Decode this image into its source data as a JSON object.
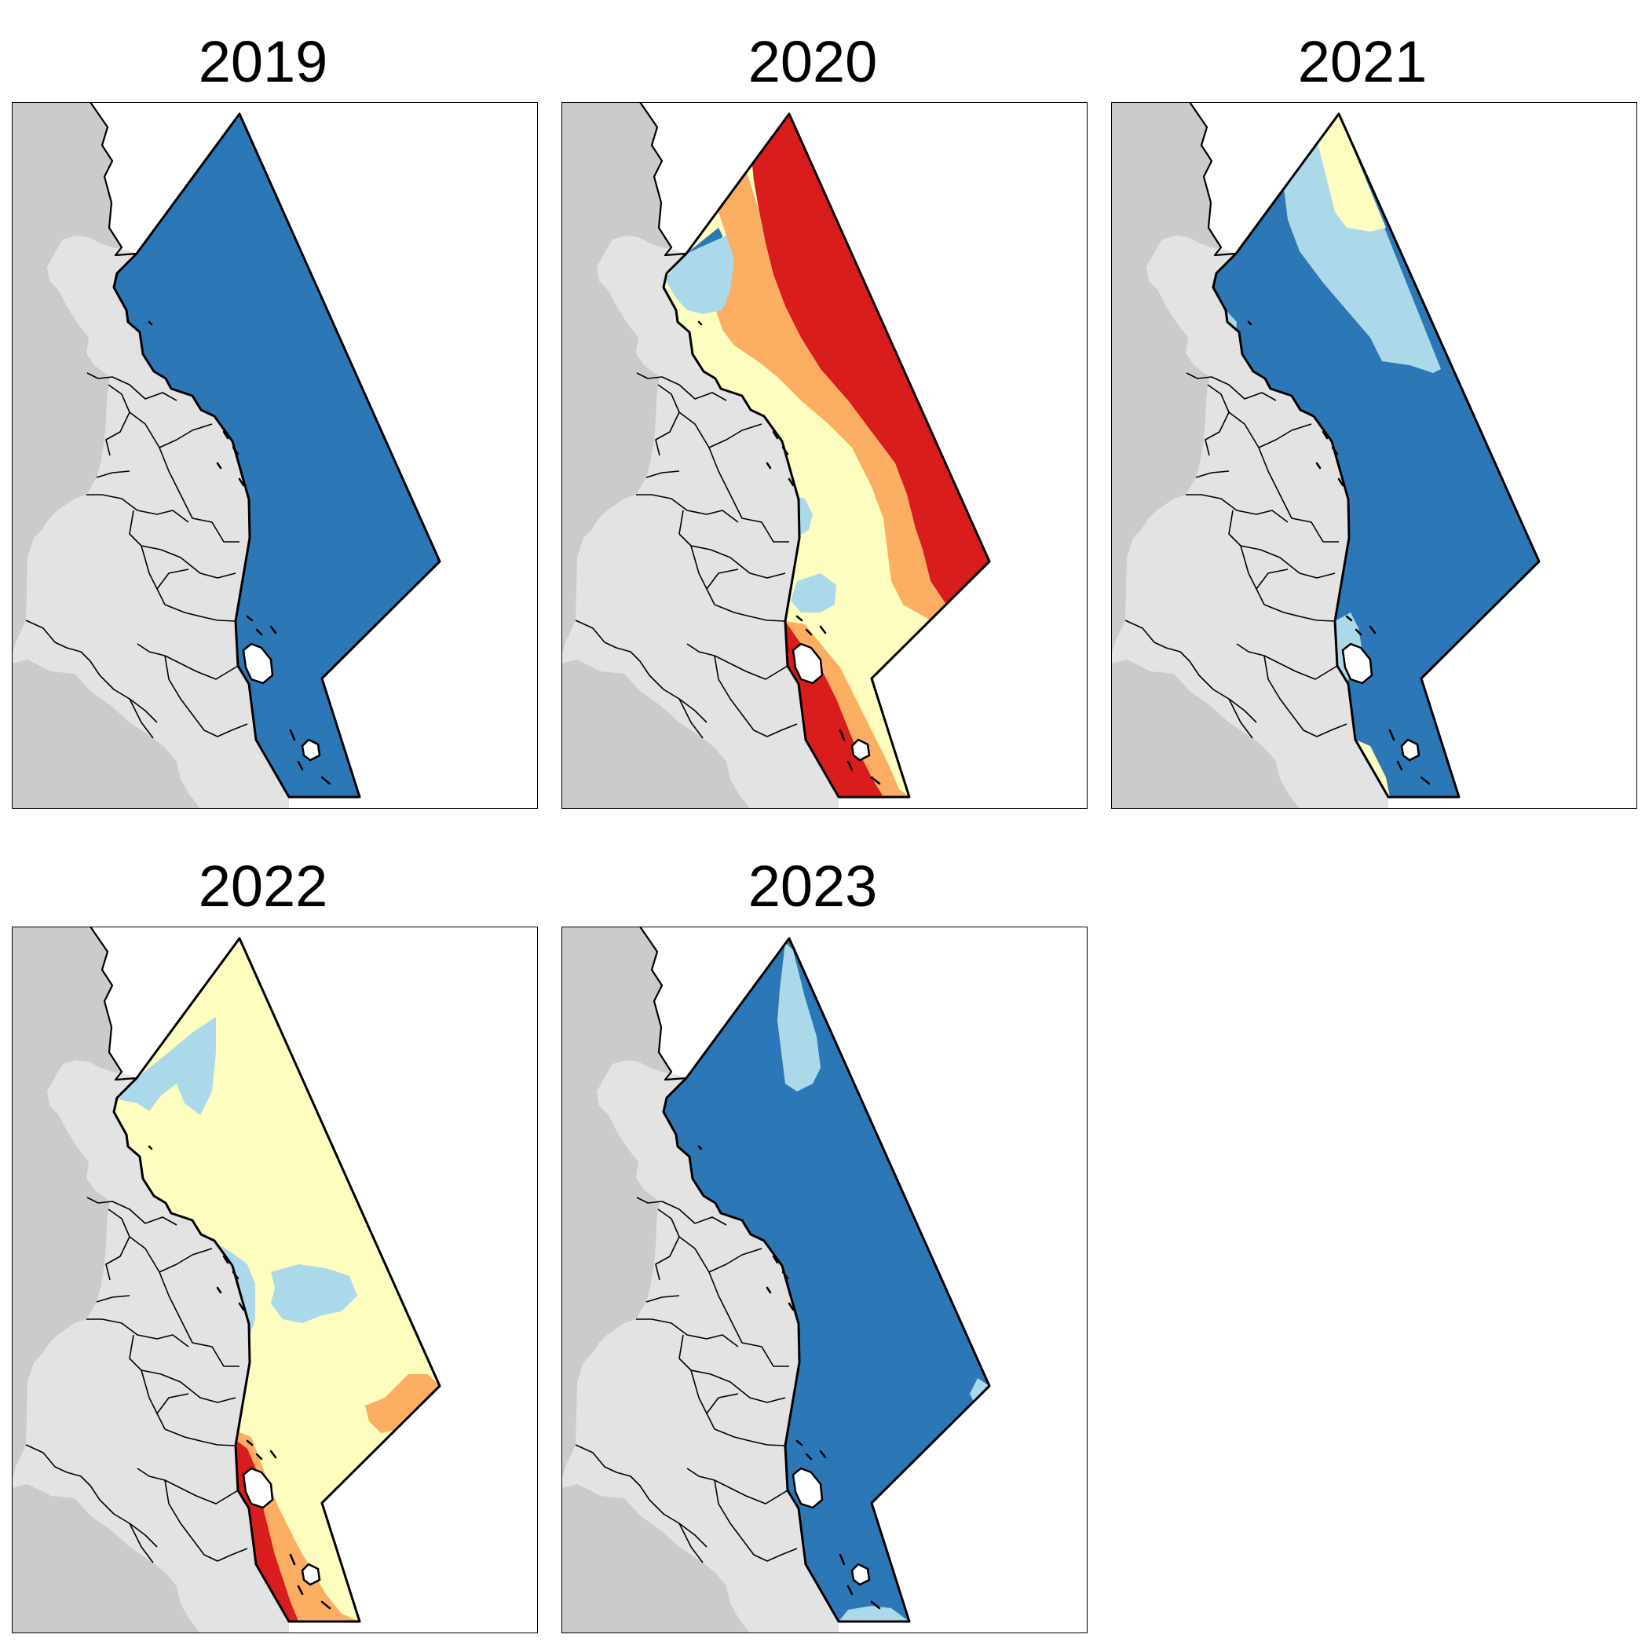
{
  "panels": [
    {
      "id": "p2019",
      "title": "2019",
      "base": "#2c78b6",
      "zones": []
    },
    {
      "id": "p2020",
      "title": "2020",
      "base": "#fdfdbf",
      "zones": [
        {
          "name": "red-offshore",
          "color": "#d91c1c"
        },
        {
          "name": "orange-band",
          "color": "#fbae61"
        },
        {
          "name": "dark-blue-north",
          "color": "#2c78b6"
        },
        {
          "name": "light-blue-north",
          "color": "#abd9e9"
        },
        {
          "name": "light-blue-patch-mid",
          "color": "#abd9e9"
        },
        {
          "name": "light-blue-patch-south",
          "color": "#abd9e9"
        },
        {
          "name": "orange-south",
          "color": "#fbae61"
        },
        {
          "name": "red-south",
          "color": "#d91c1c"
        }
      ]
    },
    {
      "id": "p2021",
      "title": "2021",
      "base": "#2c78b6",
      "zones": [
        {
          "name": "light-blue-offshore",
          "color": "#abd9e9"
        },
        {
          "name": "yellow-north-tip",
          "color": "#fdfdbf"
        },
        {
          "name": "light-blue-coast",
          "color": "#abd9e9"
        },
        {
          "name": "light-blue-south",
          "color": "#abd9e9"
        },
        {
          "name": "yellow-south-tip",
          "color": "#fdfdbf"
        }
      ]
    },
    {
      "id": "p2022",
      "title": "2022",
      "base": "#fdfdbf",
      "zones": [
        {
          "name": "light-blue-north",
          "color": "#abd9e9"
        },
        {
          "name": "light-blue-mid",
          "color": "#abd9e9"
        },
        {
          "name": "light-blue-blob",
          "color": "#abd9e9"
        },
        {
          "name": "orange-east",
          "color": "#fbae61"
        },
        {
          "name": "orange-south",
          "color": "#fbae61"
        },
        {
          "name": "red-south",
          "color": "#d91c1c"
        }
      ]
    },
    {
      "id": "p2023",
      "title": "2023",
      "base": "#2c78b6",
      "zones": [
        {
          "name": "light-blue-north",
          "color": "#abd9e9"
        },
        {
          "name": "light-blue-east-tip",
          "color": "#abd9e9"
        },
        {
          "name": "light-blue-south-tip",
          "color": "#abd9e9"
        }
      ]
    }
  ],
  "palette": {
    "land_outer": "#cbcbcb",
    "land_inner": "#e3e3e3",
    "sea": "#ffffff",
    "dark_blue": "#2c78b6",
    "light_blue": "#abd9e9",
    "pale_yellow": "#fdfdbf",
    "orange": "#fbae61",
    "red": "#d91c1c"
  }
}
